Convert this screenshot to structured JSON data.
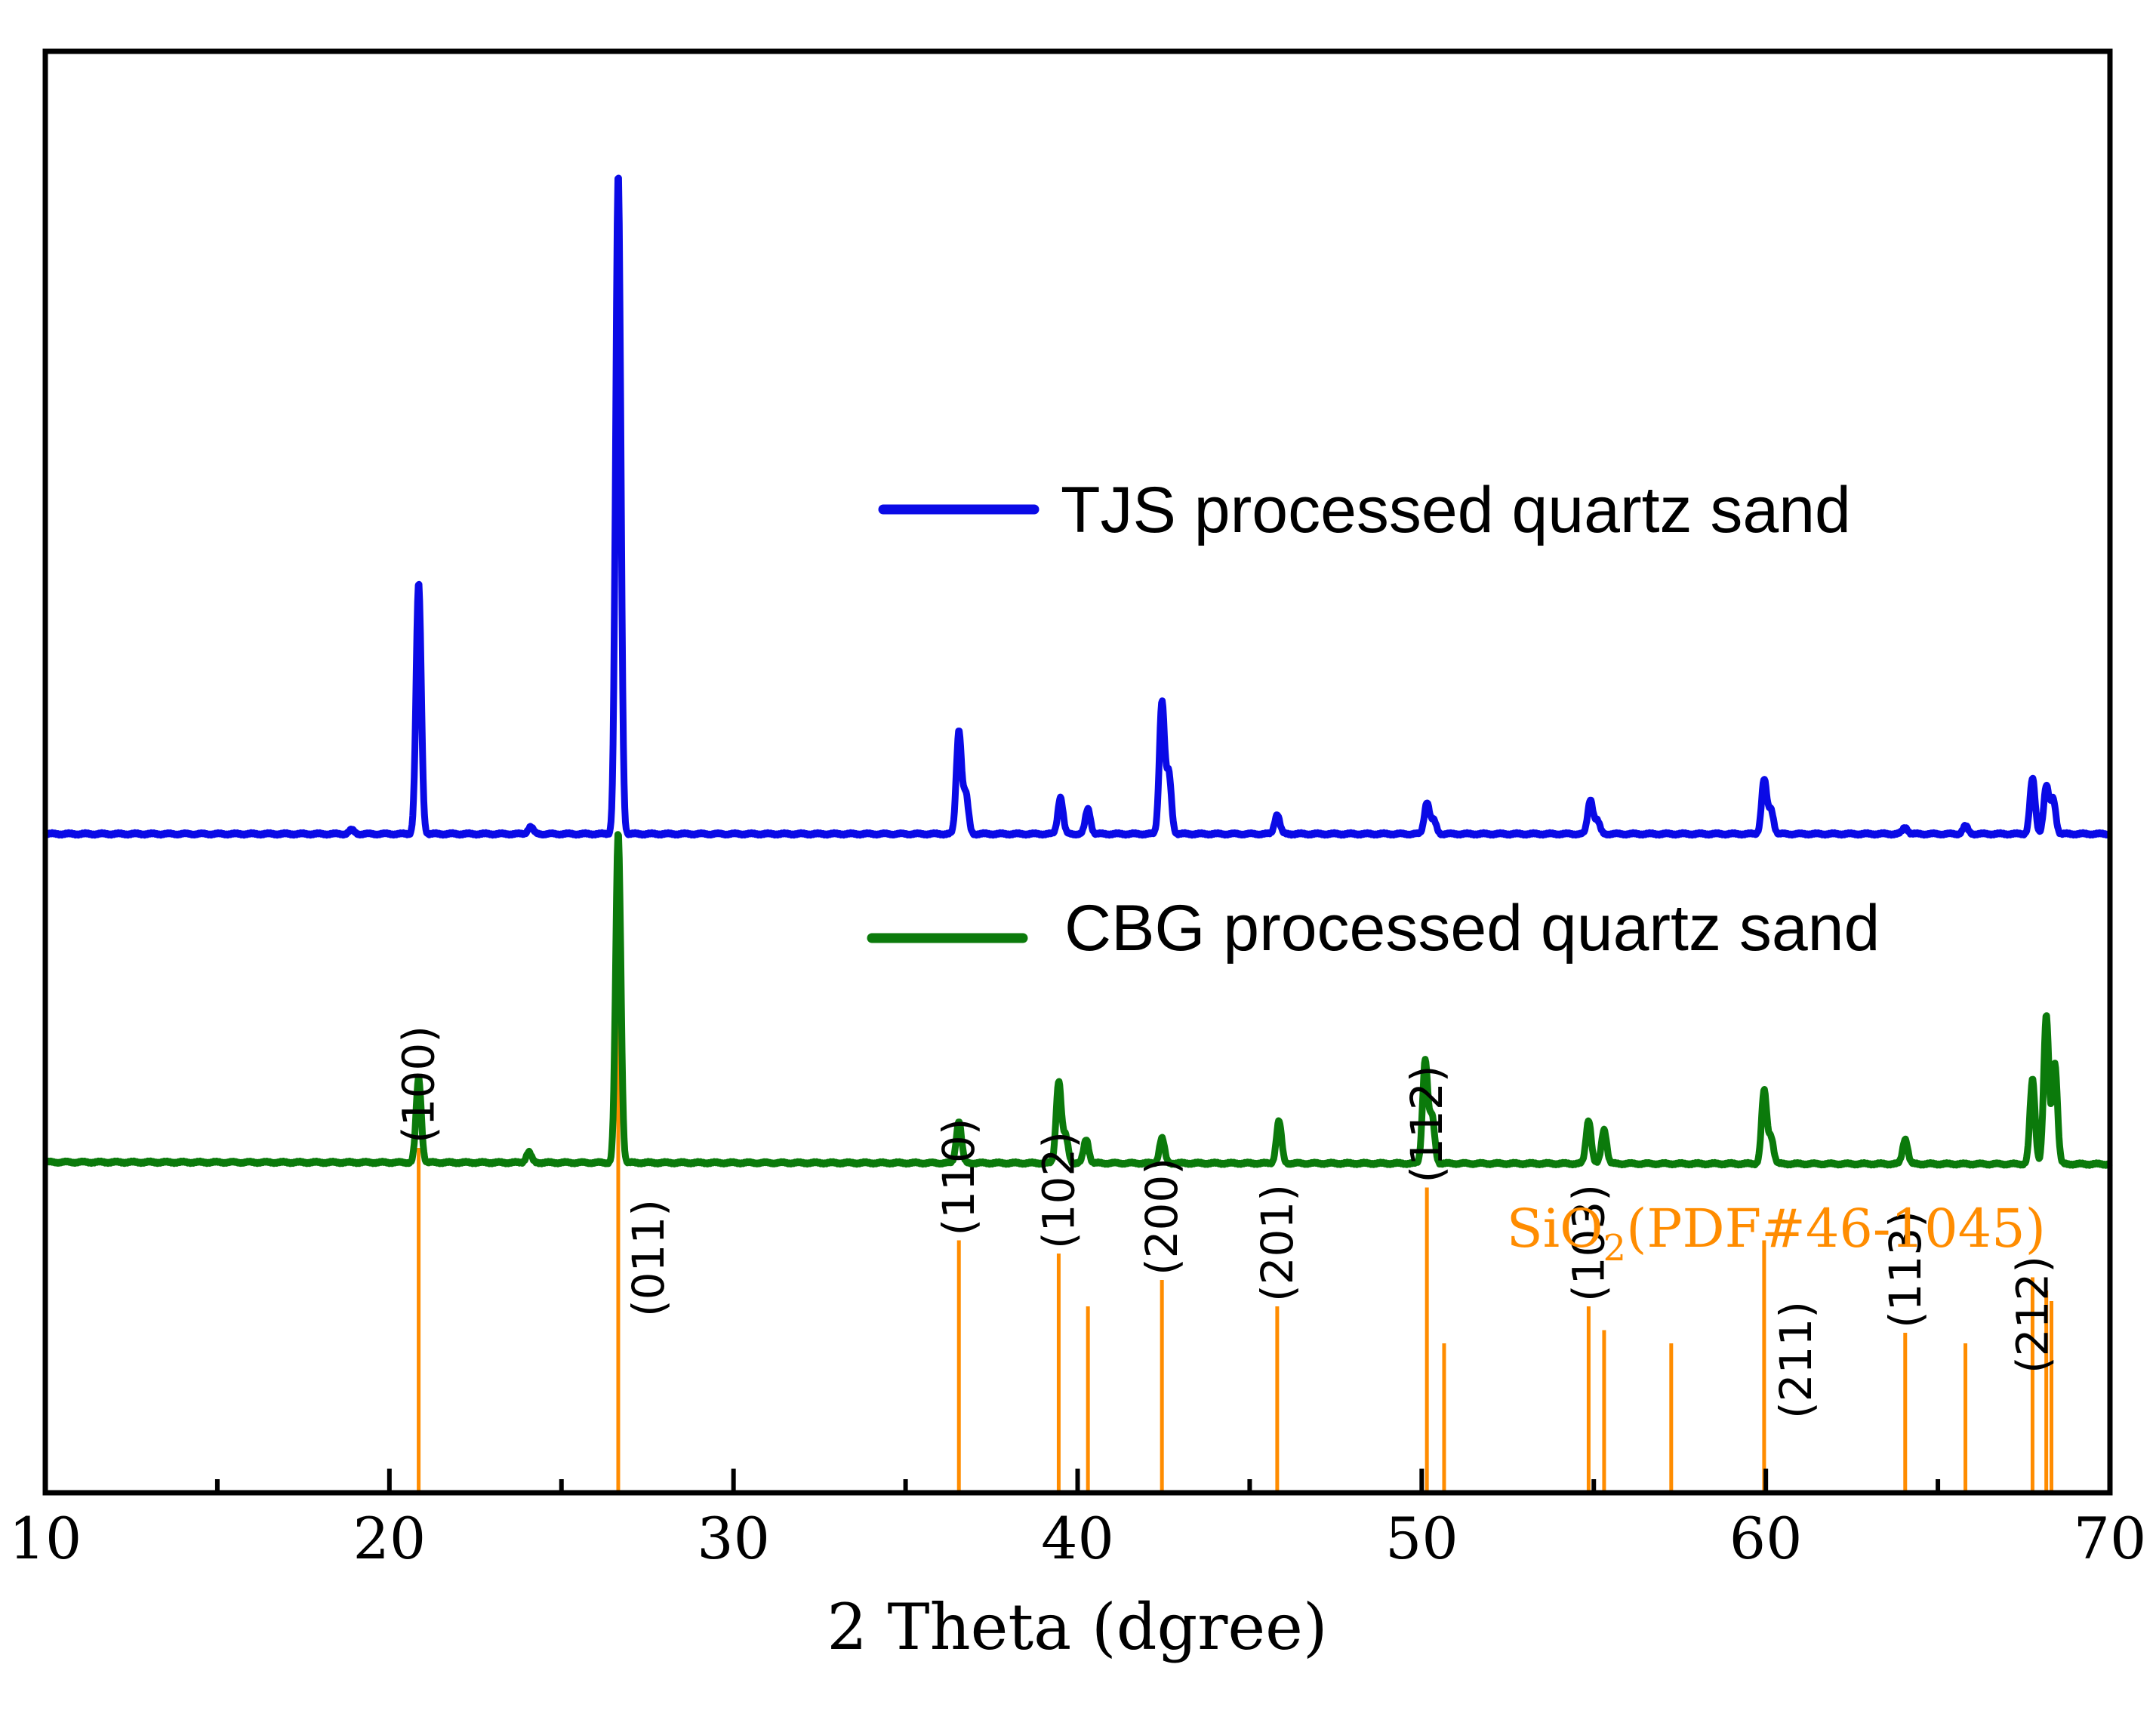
{
  "chart_data": {
    "type": "line",
    "title": "",
    "xlabel": "2 Theta (dgree)",
    "ylabel": "",
    "xlim": [
      10,
      70
    ],
    "xticks_major": [
      10,
      20,
      30,
      40,
      50,
      60,
      70
    ],
    "xticks_minor": [
      15,
      25,
      35,
      45,
      55,
      65
    ],
    "grid": false,
    "legend_position": "right",
    "colors": {
      "tjs": "#0a0ae6",
      "cbg": "#0b7a0b",
      "reference": "#ff8c00",
      "axis": "#000000"
    },
    "series": [
      {
        "name": "TJS processed quartz sand",
        "color": "#0a0ae6",
        "baseline": 0,
        "peaks": [
          {
            "x": 18.9,
            "h": 0.3
          },
          {
            "x": 20.85,
            "h": 19.0
          },
          {
            "x": 24.1,
            "h": 0.55
          },
          {
            "x": 26.65,
            "h": 50.0
          },
          {
            "x": 36.55,
            "h": 7.8
          },
          {
            "x": 36.75,
            "h": 3.0
          },
          {
            "x": 39.5,
            "h": 2.8
          },
          {
            "x": 40.3,
            "h": 1.9
          },
          {
            "x": 42.45,
            "h": 10.0
          },
          {
            "x": 42.65,
            "h": 4.5
          },
          {
            "x": 45.8,
            "h": 1.5
          },
          {
            "x": 50.15,
            "h": 2.4
          },
          {
            "x": 50.35,
            "h": 1.0
          },
          {
            "x": 54.9,
            "h": 2.6
          },
          {
            "x": 55.1,
            "h": 1.0
          },
          {
            "x": 59.95,
            "h": 4.1
          },
          {
            "x": 60.15,
            "h": 1.8
          },
          {
            "x": 64.05,
            "h": 0.5
          },
          {
            "x": 65.8,
            "h": 0.6
          },
          {
            "x": 67.75,
            "h": 4.2
          },
          {
            "x": 68.15,
            "h": 3.6
          },
          {
            "x": 68.35,
            "h": 2.6
          }
        ]
      },
      {
        "name": "CBG processed quartz sand",
        "color": "#0b7a0b",
        "baseline": -25,
        "baseline_tilt": 0.15,
        "peaks": [
          {
            "x": 20.85,
            "h": 6.4
          },
          {
            "x": 24.05,
            "h": 0.8
          },
          {
            "x": 26.65,
            "h": 25.0
          },
          {
            "x": 36.55,
            "h": 3.2
          },
          {
            "x": 39.45,
            "h": 6.2
          },
          {
            "x": 39.65,
            "h": 2.0
          },
          {
            "x": 40.25,
            "h": 1.8
          },
          {
            "x": 42.45,
            "h": 1.9
          },
          {
            "x": 45.85,
            "h": 3.2
          },
          {
            "x": 50.1,
            "h": 7.8
          },
          {
            "x": 50.3,
            "h": 3.5
          },
          {
            "x": 54.85,
            "h": 3.3
          },
          {
            "x": 55.3,
            "h": 2.6
          },
          {
            "x": 59.95,
            "h": 5.5
          },
          {
            "x": 60.15,
            "h": 2.0
          },
          {
            "x": 64.05,
            "h": 1.9
          },
          {
            "x": 67.75,
            "h": 6.4
          },
          {
            "x": 68.15,
            "h": 11.2
          },
          {
            "x": 68.4,
            "h": 7.6
          }
        ]
      }
    ],
    "reference": {
      "label": "SiO",
      "label_sub": "2",
      "label_rest": "(PDF#46-1045)",
      "lines": [
        {
          "x": 20.85,
          "h": 13.0,
          "hkl": "(100)"
        },
        {
          "x": 26.65,
          "h": 23.5,
          "hkl": "(011)"
        },
        {
          "x": 36.55,
          "h": 9.5,
          "hkl": "(110)"
        },
        {
          "x": 39.45,
          "h": 9.0,
          "hkl": "(102)"
        },
        {
          "x": 40.3,
          "h": 7.0,
          "hkl": ""
        },
        {
          "x": 42.45,
          "h": 8.0,
          "hkl": "(200)"
        },
        {
          "x": 45.8,
          "h": 7.0,
          "hkl": "(201)"
        },
        {
          "x": 50.15,
          "h": 11.5,
          "hkl": "(112)"
        },
        {
          "x": 50.65,
          "h": 5.6,
          "hkl": ""
        },
        {
          "x": 54.85,
          "h": 7.0,
          "hkl": "(103)"
        },
        {
          "x": 55.3,
          "h": 6.1,
          "hkl": ""
        },
        {
          "x": 57.25,
          "h": 5.6,
          "hkl": ""
        },
        {
          "x": 59.95,
          "h": 9.5,
          "hkl": "(211)"
        },
        {
          "x": 64.05,
          "h": 6.0,
          "hkl": "(113)"
        },
        {
          "x": 65.8,
          "h": 5.6,
          "hkl": ""
        },
        {
          "x": 67.75,
          "h": 8.1,
          "hkl": "(212)"
        },
        {
          "x": 68.15,
          "h": 7.6,
          "hkl": ""
        },
        {
          "x": 68.3,
          "h": 7.2,
          "hkl": ""
        }
      ]
    }
  }
}
